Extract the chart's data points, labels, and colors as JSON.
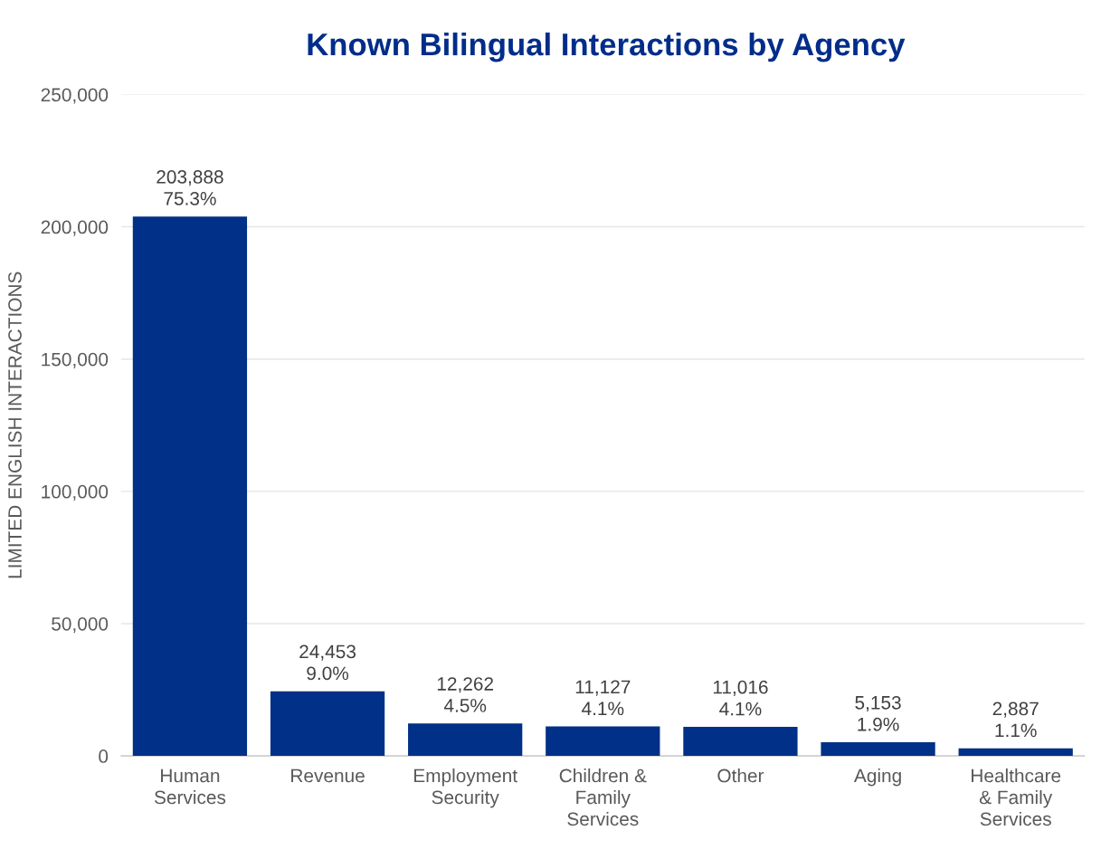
{
  "chart_data": {
    "type": "bar",
    "title": "Known Bilingual Interactions by Agency",
    "ylabel": "LIMITED ENGLISH INTERACTIONS",
    "categories": [
      "Human\nServices",
      "Revenue",
      "Employment\nSecurity",
      "Children &\nFamily\nServices",
      "Other",
      "Aging",
      "Healthcare\n& Family\nServices"
    ],
    "values": [
      203888,
      24453,
      12262,
      11127,
      11016,
      5153,
      2887
    ],
    "value_labels": [
      "203,888\n75.3%",
      "24,453\n9.0%",
      "12,262\n4.5%",
      "11,127\n4.1%",
      "11,016\n4.1%",
      "5,153\n1.9%",
      "2,887\n1.1%"
    ],
    "color": "#003087",
    "ylim": [
      0,
      250000
    ],
    "yticks": [
      {
        "value": 0,
        "label": "0"
      },
      {
        "value": 50000,
        "label": "50,000"
      },
      {
        "value": 100000,
        "label": "100,000"
      },
      {
        "value": 150000,
        "label": "150,000"
      },
      {
        "value": 200000,
        "label": "200,000"
      },
      {
        "value": 250000,
        "label": "250,000"
      }
    ],
    "grid": "y",
    "legend": false
  }
}
